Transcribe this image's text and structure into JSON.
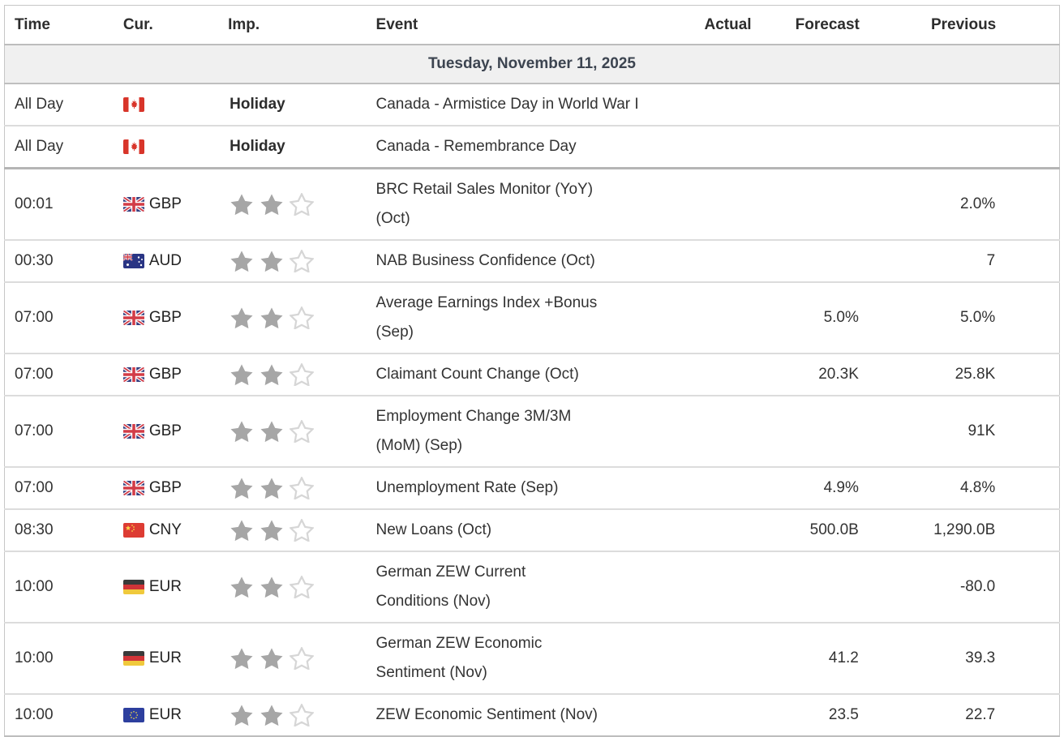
{
  "table": {
    "columns": {
      "time": "Time",
      "cur": "Cur.",
      "imp": "Imp.",
      "event": "Event",
      "actual": "Actual",
      "forecast": "Forecast",
      "previous": "Previous"
    },
    "date_header": "Tuesday, November 11, 2025",
    "rows": [
      {
        "time": "All Day",
        "flag": "canada",
        "currency": "",
        "importance": {
          "type": "holiday",
          "label": "Holiday"
        },
        "event_lines": [
          "Canada - Armistice Day in World War I"
        ],
        "actual": "",
        "forecast": "",
        "previous": ""
      },
      {
        "time": "All Day",
        "flag": "canada",
        "currency": "",
        "importance": {
          "type": "holiday",
          "label": "Holiday"
        },
        "event_lines": [
          "Canada - Remembrance Day"
        ],
        "actual": "",
        "forecast": "",
        "previous": "",
        "section_end": true
      },
      {
        "time": "00:01",
        "flag": "uk",
        "currency": "GBP",
        "importance": {
          "type": "stars",
          "filled": 2,
          "total": 3
        },
        "event_lines": [
          "BRC Retail Sales Monitor (YoY)",
          "(Oct)"
        ],
        "actual": "",
        "forecast": "",
        "previous": "2.0%"
      },
      {
        "time": "00:30",
        "flag": "australia",
        "currency": "AUD",
        "importance": {
          "type": "stars",
          "filled": 2,
          "total": 3
        },
        "event_lines": [
          "NAB Business Confidence (Oct)"
        ],
        "actual": "",
        "forecast": "",
        "previous": "7"
      },
      {
        "time": "07:00",
        "flag": "uk",
        "currency": "GBP",
        "importance": {
          "type": "stars",
          "filled": 2,
          "total": 3
        },
        "event_lines": [
          "Average Earnings Index +Bonus",
          "(Sep)"
        ],
        "actual": "",
        "forecast": "5.0%",
        "previous": "5.0%"
      },
      {
        "time": "07:00",
        "flag": "uk",
        "currency": "GBP",
        "importance": {
          "type": "stars",
          "filled": 2,
          "total": 3
        },
        "event_lines": [
          "Claimant Count Change (Oct)"
        ],
        "actual": "",
        "forecast": "20.3K",
        "previous": "25.8K"
      },
      {
        "time": "07:00",
        "flag": "uk",
        "currency": "GBP",
        "importance": {
          "type": "stars",
          "filled": 2,
          "total": 3
        },
        "event_lines": [
          "Employment Change 3M/3M",
          "(MoM) (Sep)"
        ],
        "actual": "",
        "forecast": "",
        "previous": "91K"
      },
      {
        "time": "07:00",
        "flag": "uk",
        "currency": "GBP",
        "importance": {
          "type": "stars",
          "filled": 2,
          "total": 3
        },
        "event_lines": [
          "Unemployment Rate (Sep)"
        ],
        "actual": "",
        "forecast": "4.9%",
        "previous": "4.8%"
      },
      {
        "time": "08:30",
        "flag": "china",
        "currency": "CNY",
        "importance": {
          "type": "stars",
          "filled": 2,
          "total": 3
        },
        "event_lines": [
          "New Loans (Oct)"
        ],
        "actual": "",
        "forecast": "500.0B",
        "previous": "1,290.0B"
      },
      {
        "time": "10:00",
        "flag": "germany",
        "currency": "EUR",
        "importance": {
          "type": "stars",
          "filled": 2,
          "total": 3
        },
        "event_lines": [
          "German ZEW Current",
          "Conditions (Nov)"
        ],
        "actual": "",
        "forecast": "",
        "previous": "-80.0"
      },
      {
        "time": "10:00",
        "flag": "germany",
        "currency": "EUR",
        "importance": {
          "type": "stars",
          "filled": 2,
          "total": 3
        },
        "event_lines": [
          "German ZEW Economic",
          "Sentiment (Nov)"
        ],
        "actual": "",
        "forecast": "41.2",
        "previous": "39.3"
      },
      {
        "time": "10:00",
        "flag": "eu",
        "currency": "EUR",
        "importance": {
          "type": "stars",
          "filled": 2,
          "total": 3
        },
        "event_lines": [
          "ZEW Economic Sentiment (Nov)"
        ],
        "actual": "",
        "forecast": "23.5",
        "previous": "22.7"
      }
    ]
  },
  "colors": {
    "star_filled": "#a6a6a6",
    "star_outline": "#d6d6d6",
    "date_row_bg": "#f0f0f0",
    "row_border": "#dcdcdc",
    "section_border": "#b5b5b5"
  }
}
